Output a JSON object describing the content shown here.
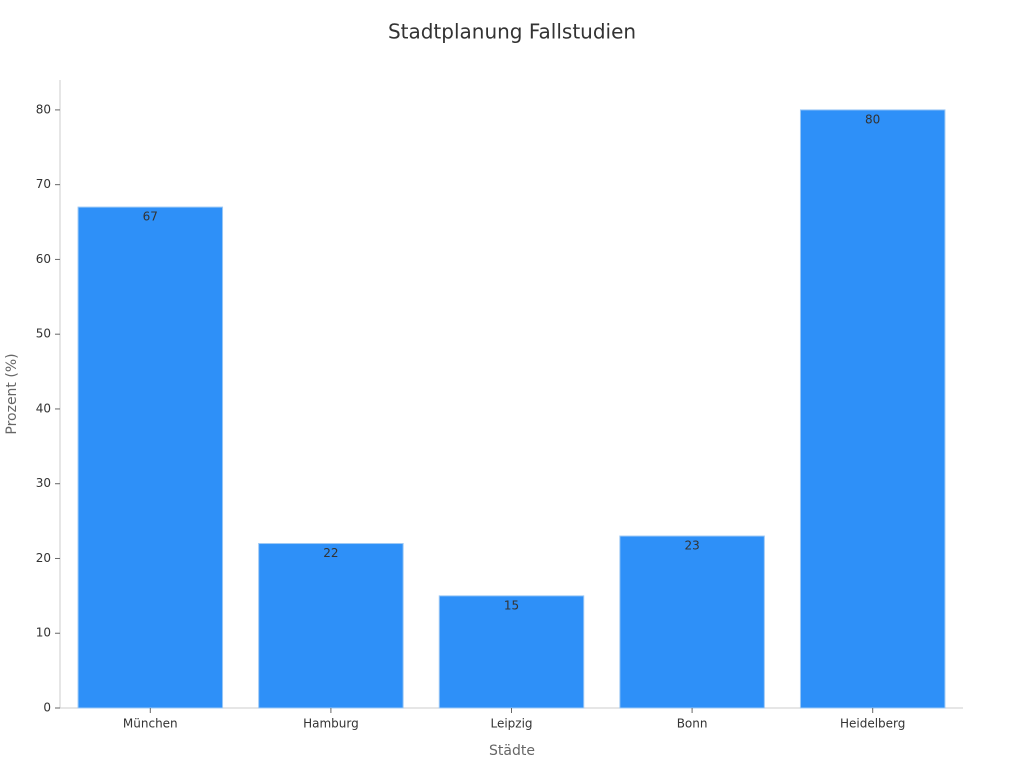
{
  "chart_data": {
    "type": "bar",
    "title": "Stadtplanung Fallstudien",
    "x_label": "Städte",
    "y_label": "Prozent (%)",
    "categories": [
      "München",
      "Hamburg",
      "Leipzig",
      "Bonn",
      "Heidelberg"
    ],
    "values": [
      67,
      22,
      15,
      23,
      80
    ],
    "color": "#2e90f8",
    "ylim": [
      0,
      84
    ],
    "yticks": [
      0,
      10,
      20,
      30,
      40,
      50,
      60,
      70,
      80
    ],
    "grid": false
  }
}
